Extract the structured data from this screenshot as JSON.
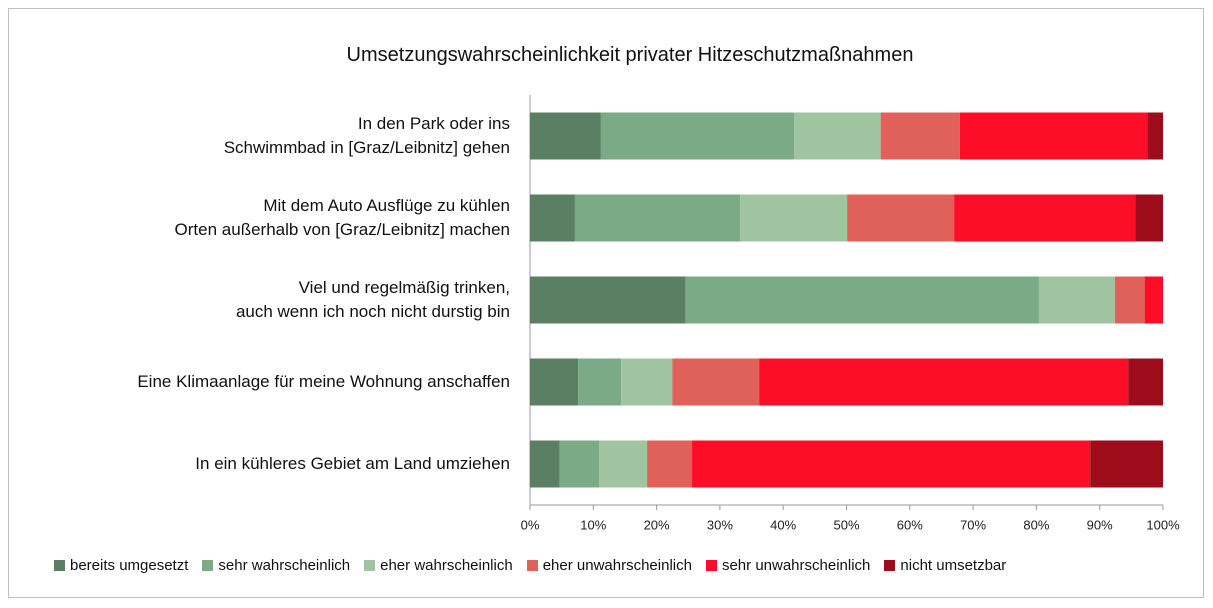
{
  "chart_data": {
    "type": "bar",
    "orientation": "horizontal",
    "stacked": true,
    "title": "Umsetzungswahrscheinlichkeit privater Hitzeschutzmaßnahmen",
    "categories": [
      "In den Park oder ins\nSchwimmbad in [Graz/Leibnitz] gehen",
      "Mit dem Auto Ausflüge zu kühlen\nOrten außerhalb von [Graz/Leibnitz] machen",
      "Viel und regelmäßig trinken,\nauch wenn ich noch nicht durstig bin",
      "Eine Klimaanlage für meine Wohnung anschaffen",
      "In ein kühleres Gebiet am Land umziehen"
    ],
    "series": [
      {
        "name": "bereits umgesetzt",
        "color": "#5b7f63",
        "values": [
          11.2,
          7.1,
          24.6,
          7.6,
          4.7
        ]
      },
      {
        "name": "sehr wahrscheinlich",
        "color": "#7aaa86",
        "values": [
          30.5,
          26.1,
          55.8,
          6.8,
          6.2
        ]
      },
      {
        "name": "eher wahrscheinlich",
        "color": "#a0c49f",
        "values": [
          13.7,
          16.9,
          12.0,
          8.1,
          7.6
        ]
      },
      {
        "name": "eher unwahrscheinlich",
        "color": "#e0605a",
        "values": [
          12.5,
          16.9,
          4.7,
          13.7,
          7.1
        ]
      },
      {
        "name": "sehr unwahrscheinlich",
        "color": "#fc0d28",
        "values": [
          29.6,
          28.6,
          2.9,
          58.3,
          62.9
        ]
      },
      {
        "name": "nicht umsetzbar",
        "color": "#9e0b1a",
        "values": [
          2.5,
          4.4,
          0,
          5.5,
          11.5
        ]
      }
    ],
    "xlim": [
      0,
      100
    ],
    "xticks": [
      {
        "value": 0,
        "label": "0%"
      },
      {
        "value": 10,
        "label": "10%"
      },
      {
        "value": 20,
        "label": "20%"
      },
      {
        "value": 30,
        "label": "30%"
      },
      {
        "value": 40,
        "label": "40%"
      },
      {
        "value": 50,
        "label": "50%"
      },
      {
        "value": 60,
        "label": "60%"
      },
      {
        "value": 70,
        "label": "70%"
      },
      {
        "value": 80,
        "label": "80%"
      },
      {
        "value": 90,
        "label": "90%"
      },
      {
        "value": 100,
        "label": "100%"
      }
    ],
    "legend": "bottom"
  }
}
